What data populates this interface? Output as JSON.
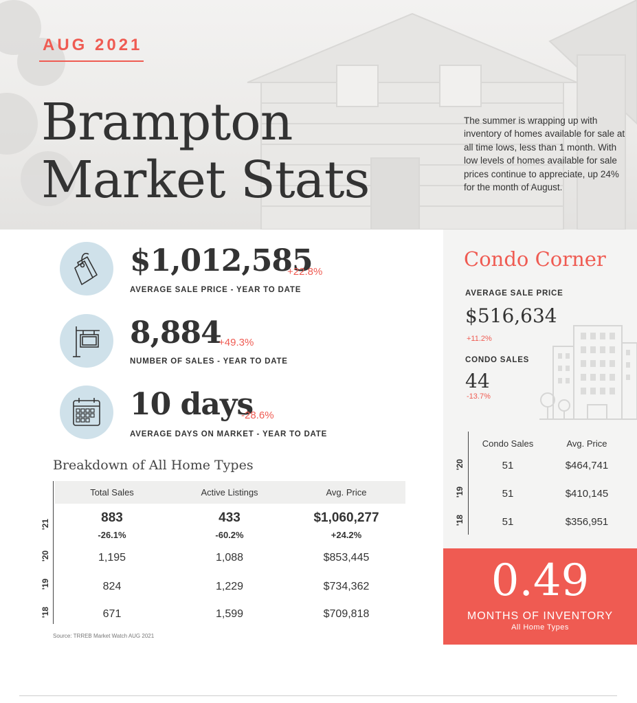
{
  "header": {
    "month": "AUG 2021",
    "title_line1": "Brampton",
    "title_line2": "Market Stats",
    "intro": "The summer is wrapping up with inventory of homes available for sale at all time lows, less than 1 month.  With low levels of homes available for sale prices continue to appreciate, up 24% for the month of August."
  },
  "stats": [
    {
      "icon": "price-tag-icon",
      "value": "$1,012,585",
      "change": "+22.8%",
      "label": "AVERAGE SALE PRICE - YEAR TO DATE"
    },
    {
      "icon": "sale-sign-icon",
      "value": "8,884",
      "change": "+49.3%",
      "label": "NUMBER OF SALES - YEAR TO DATE"
    },
    {
      "icon": "calendar-icon",
      "value": "10 days",
      "change": "-28.6%",
      "label": "AVERAGE DAYS ON MARKET - YEAR TO DATE"
    }
  ],
  "breakdown": {
    "title": "Breakdown of All Home Types",
    "headers": [
      "Total Sales",
      "Active Listings",
      "Avg. Price"
    ],
    "rows": [
      {
        "year": "'21",
        "total_sales": "883",
        "total_sales_change": "-26.1%",
        "active_listings": "433",
        "active_listings_change": "-60.2%",
        "avg_price": "$1,060,277",
        "avg_price_change": "+24.2%"
      },
      {
        "year": "'20",
        "total_sales": "1,195",
        "active_listings": "1,088",
        "avg_price": "$853,445"
      },
      {
        "year": "'19",
        "total_sales": "824",
        "active_listings": "1,229",
        "avg_price": "$734,362"
      },
      {
        "year": "'18",
        "total_sales": "671",
        "active_listings": "1,599",
        "avg_price": "$709,818"
      }
    ],
    "source": "Source: TRREB Market Watch AUG 2021"
  },
  "condo": {
    "title": "Condo Corner",
    "avg_price_label": "AVERAGE SALE PRICE",
    "avg_price": "$516,634",
    "avg_price_change": "+11.2%",
    "sales_label": "CONDO SALES",
    "sales": "44",
    "sales_change": "-13.7%",
    "headers": [
      "Condo Sales",
      "Avg. Price"
    ],
    "rows": [
      {
        "year": "'20",
        "sales": "51",
        "avg_price": "$464,741"
      },
      {
        "year": "'19",
        "sales": "51",
        "avg_price": "$410,145"
      },
      {
        "year": "'18",
        "sales": "51",
        "avg_price": "$356,951"
      }
    ]
  },
  "inventory": {
    "value": "0.49",
    "label": "MONTHS OF INVENTORY",
    "sub": "All Home Types"
  },
  "colors": {
    "accent": "#ef5b52",
    "icon_circle": "#cfe1ea",
    "text": "#333333"
  }
}
